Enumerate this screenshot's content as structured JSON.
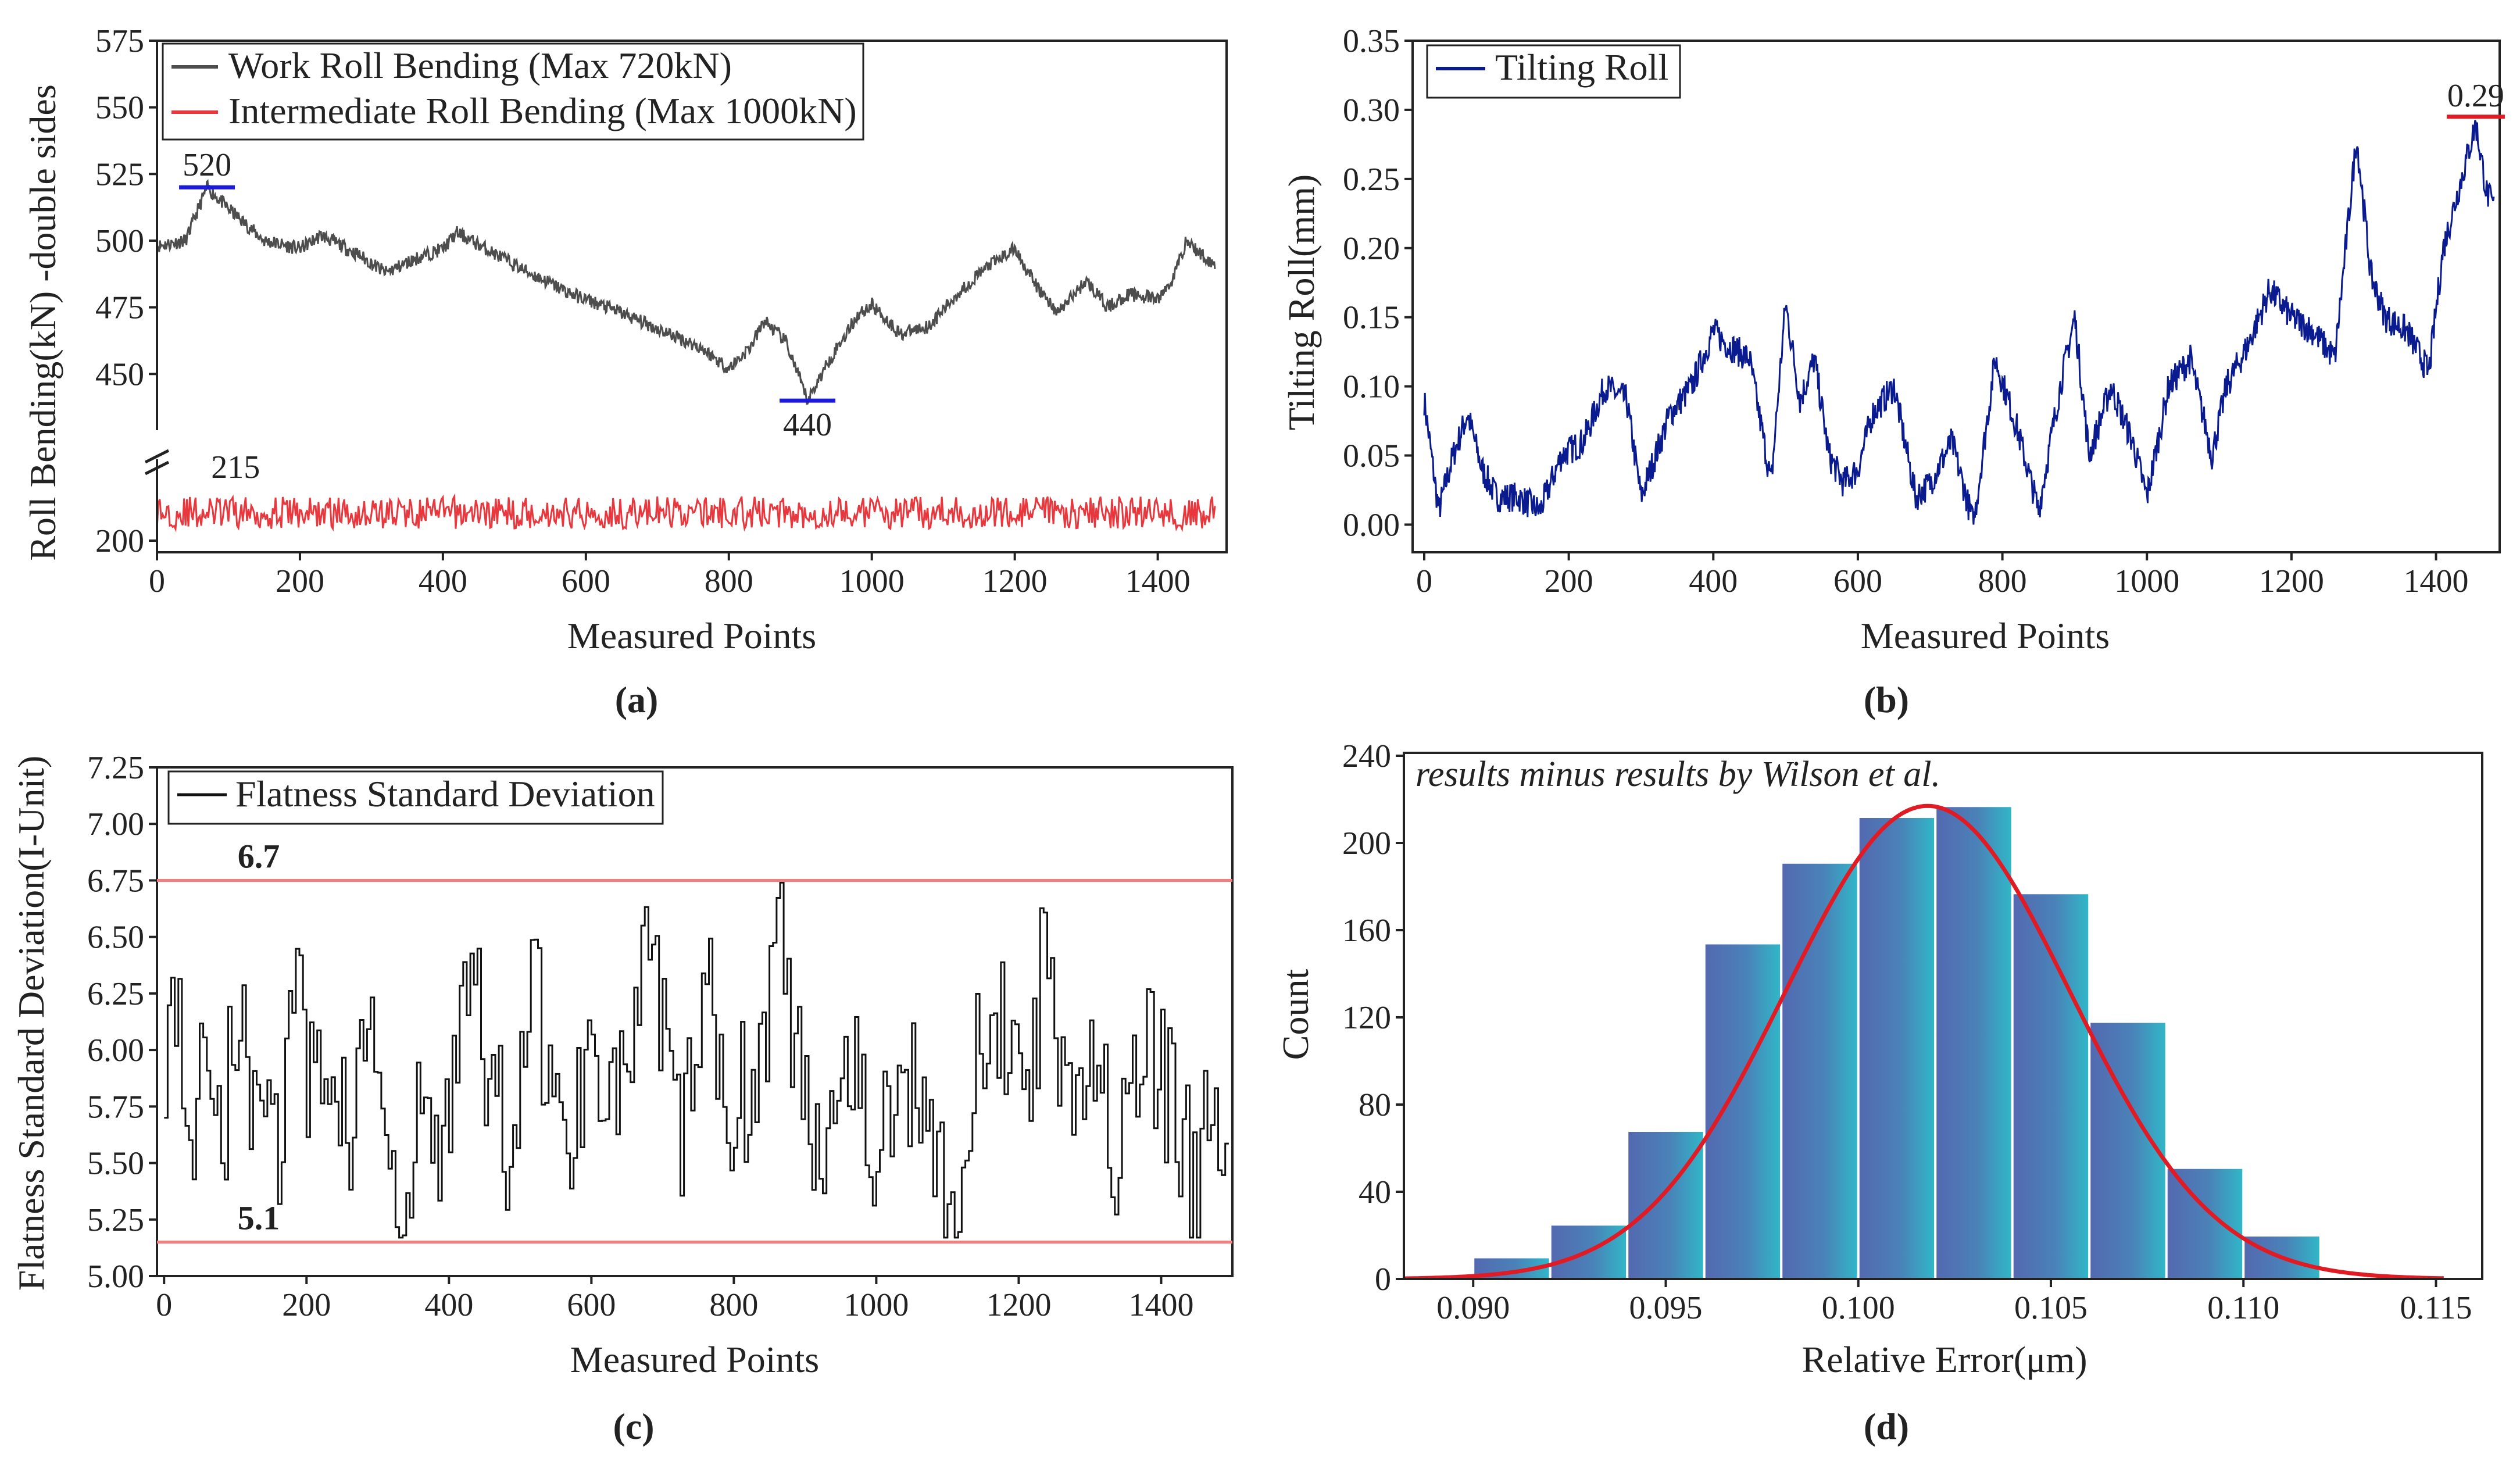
{
  "chart_data": [
    {
      "id": "a",
      "type": "line",
      "panel_label": "(a)",
      "xlabel": "Measured Points",
      "ylabel": "Roll Bending(kN) -double sides",
      "xlim": [
        0,
        1480
      ],
      "xticks": [
        "0",
        "200",
        "400",
        "600",
        "800",
        "1000",
        "1200",
        "1400"
      ],
      "xtick_values": [
        0,
        200,
        400,
        600,
        800,
        1000,
        1200,
        1400
      ],
      "ylim_upper": [
        430,
        575
      ],
      "yticks_upper": [
        450,
        475,
        500,
        525,
        550,
        575
      ],
      "ytick_labels_upper": [
        "450",
        "475",
        "500",
        "525",
        "550",
        "575"
      ],
      "ylim_lower": [
        195,
        235
      ],
      "yticks_lower": [
        200
      ],
      "ytick_labels_lower": [
        "200"
      ],
      "axis_break": true,
      "legend_position": "top-left",
      "series": [
        {
          "name": "Work Roll Bending (Max 720kN)",
          "color": "#4d4d4d",
          "x": [
            0,
            40,
            70,
            100,
            150,
            200,
            230,
            280,
            320,
            360,
            400,
            420,
            460,
            520,
            580,
            640,
            700,
            760,
            800,
            830,
            850,
            880,
            910,
            940,
            980,
            1000,
            1040,
            1080,
            1120,
            1160,
            1200,
            1230,
            1260,
            1300,
            1330,
            1360,
            1400,
            1420,
            1440,
            1460,
            1480
          ],
          "values": [
            498,
            500,
            520,
            512,
            500,
            497,
            502,
            495,
            488,
            493,
            497,
            503,
            497,
            488,
            480,
            474,
            467,
            460,
            452,
            460,
            470,
            462,
            440,
            455,
            472,
            476,
            465,
            468,
            480,
            490,
            497,
            483,
            473,
            485,
            475,
            480,
            478,
            485,
            500,
            495,
            491
          ]
        },
        {
          "name": "Intermediate Roll Bending (Max 1000kN)",
          "color": "#e8383d",
          "baseline": 212,
          "amplitude": 7
        }
      ],
      "annotations": [
        {
          "text": "520",
          "x": 70,
          "y": 520,
          "color": "#b22222",
          "marker_color": "#1a1adb"
        },
        {
          "text": "440",
          "x": 910,
          "y": 440,
          "color": "#b22222",
          "marker_color": "#1a1adb"
        },
        {
          "text": "215",
          "x": 110,
          "y": 222,
          "color": "#b22222"
        }
      ]
    },
    {
      "id": "b",
      "type": "line",
      "panel_label": "(b)",
      "xlabel": "Measured Points",
      "ylabel": "Tilting Roll(mm)",
      "xlim": [
        0,
        1480
      ],
      "xticks": [
        "0",
        "200",
        "400",
        "600",
        "800",
        "1000",
        "1200",
        "1400"
      ],
      "xtick_values": [
        0,
        200,
        400,
        600,
        800,
        1000,
        1200,
        1400
      ],
      "ylim": [
        -0.02,
        0.35
      ],
      "yticks": [
        "0.00",
        "0.05",
        "0.10",
        "0.15",
        "0.20",
        "0.25",
        "0.30",
        "0.35"
      ],
      "ytick_values": [
        0,
        0.05,
        0.1,
        0.15,
        0.2,
        0.25,
        0.3,
        0.35
      ],
      "legend_position": "top-left",
      "series": [
        {
          "name": "Tilting Roll",
          "color": "#0a1a8f",
          "x": [
            0,
            20,
            40,
            60,
            80,
            100,
            130,
            160,
            190,
            220,
            250,
            280,
            300,
            320,
            340,
            370,
            400,
            420,
            450,
            480,
            500,
            520,
            540,
            560,
            580,
            600,
            620,
            650,
            680,
            700,
            730,
            760,
            790,
            820,
            850,
            880,
            900,
            920,
            950,
            980,
            1000,
            1030,
            1060,
            1090,
            1110,
            1140,
            1170,
            1200,
            1230,
            1260,
            1290,
            1310,
            1330,
            1360,
            1390,
            1410,
            1440,
            1455,
            1470,
            1480
          ],
          "values": [
            0.09,
            0.01,
            0.05,
            0.08,
            0.04,
            0.02,
            0.02,
            0.01,
            0.05,
            0.06,
            0.1,
            0.09,
            0.02,
            0.05,
            0.08,
            0.1,
            0.14,
            0.13,
            0.12,
            0.03,
            0.16,
            0.09,
            0.12,
            0.05,
            0.03,
            0.04,
            0.08,
            0.1,
            0.02,
            0.03,
            0.06,
            0.0,
            0.12,
            0.07,
            0.01,
            0.1,
            0.15,
            0.05,
            0.1,
            0.06,
            0.02,
            0.1,
            0.12,
            0.05,
            0.1,
            0.13,
            0.17,
            0.15,
            0.14,
            0.12,
            0.28,
            0.18,
            0.15,
            0.14,
            0.11,
            0.2,
            0.26,
            0.29,
            0.24,
            0.23
          ]
        }
      ],
      "annotations": [
        {
          "text": "0.29",
          "x": 1455,
          "y": 0.295,
          "color": "#b22222",
          "marker_color": "#e01b24"
        }
      ]
    },
    {
      "id": "c",
      "type": "line",
      "panel_label": "(c)",
      "xlabel": "Measured Points",
      "ylabel": "Flatness Standard Deviation(I-Unit)",
      "xlim": [
        -10,
        1500
      ],
      "xticks": [
        "0",
        "200",
        "400",
        "600",
        "800",
        "1000",
        "1200",
        "1400"
      ],
      "xtick_values": [
        0,
        200,
        400,
        600,
        800,
        1000,
        1200,
        1400
      ],
      "ylim": [
        5.0,
        7.25
      ],
      "yticks": [
        "5.00",
        "5.25",
        "5.50",
        "5.75",
        "6.00",
        "6.25",
        "6.50",
        "6.75",
        "7.00",
        "7.25"
      ],
      "ytick_values": [
        5.0,
        5.25,
        5.5,
        5.75,
        6.0,
        6.25,
        6.5,
        6.75,
        7.0,
        7.25
      ],
      "legend_position": "top-left",
      "series": [
        {
          "name": "Flatness Standard Deviation",
          "color": "#111111",
          "x": [
            0,
            20,
            40,
            60,
            80,
            100,
            120,
            140,
            160,
            180,
            200,
            230,
            260,
            290,
            320,
            340,
            360,
            390,
            420,
            450,
            480,
            520,
            560,
            600,
            640,
            680,
            720,
            760,
            800,
            840,
            860,
            880,
            920,
            960,
            1000,
            1040,
            1080,
            1110,
            1140,
            1180,
            1220,
            1245,
            1260,
            1300,
            1340,
            1380,
            1420,
            1450,
            1470,
            1490
          ],
          "values": [
            6.05,
            6.2,
            5.5,
            6.15,
            5.6,
            6.2,
            5.75,
            6.0,
            5.45,
            6.4,
            5.8,
            6.0,
            5.6,
            6.2,
            5.25,
            5.2,
            5.8,
            5.45,
            6.5,
            5.9,
            5.6,
            6.3,
            5.5,
            6.1,
            5.8,
            6.4,
            5.6,
            6.2,
            5.75,
            6.0,
            6.7,
            6.0,
            5.6,
            6.1,
            5.5,
            5.9,
            5.7,
            5.2,
            5.9,
            6.1,
            6.0,
            6.7,
            5.8,
            6.1,
            5.5,
            6.0,
            5.7,
            5.3,
            5.9,
            5.6
          ]
        }
      ],
      "threshold_lines": [
        {
          "label": "6.7",
          "y": 6.75,
          "color": "#f08080",
          "label_color": "#1a1adb"
        },
        {
          "label": "5.1",
          "y": 5.15,
          "color": "#f08080",
          "label_color": "#1a1adb"
        }
      ]
    },
    {
      "id": "d",
      "type": "bar",
      "panel_label": "(d)",
      "title": "results minus results by Wilson et al.",
      "xlabel": "Relative Error(μm)",
      "ylabel": "Count",
      "xlim": [
        0.0882,
        0.1162
      ],
      "xticks": [
        "0.090",
        "0.095",
        "0.100",
        "0.105",
        "0.110",
        "0.115"
      ],
      "xtick_values": [
        0.09,
        0.095,
        0.1,
        0.105,
        0.11,
        0.115
      ],
      "ylim": [
        0,
        240
      ],
      "yticks": [
        "0",
        "40",
        "80",
        "120",
        "160",
        "200",
        "240"
      ],
      "ytick_values": [
        0,
        40,
        80,
        120,
        160,
        200,
        240
      ],
      "bin_width": 0.002,
      "bin_starts": [
        0.09,
        0.092,
        0.094,
        0.096,
        0.098,
        0.1,
        0.102,
        0.104,
        0.106,
        0.108,
        0.11
      ],
      "values": [
        10,
        25,
        68,
        154,
        191,
        212,
        217,
        177,
        118,
        51,
        20
      ],
      "fit": {
        "type": "normal",
        "mean": 0.1018,
        "peak": 217,
        "sigma": 0.0037,
        "color": "#e01b24"
      }
    }
  ]
}
